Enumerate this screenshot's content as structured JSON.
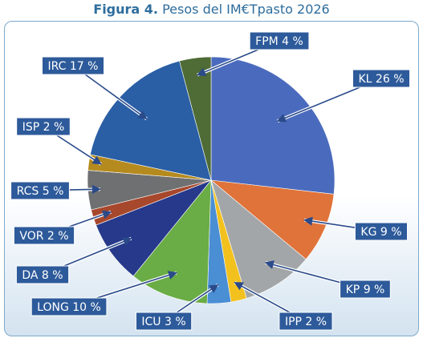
{
  "title": {
    "prefix": "Figura 4.",
    "text": "Pesos del IM€Tpasto 2026"
  },
  "chart_data": {
    "type": "pie",
    "title": "Figura 4. Pesos del IM€Tpasto 2026",
    "slices": [
      {
        "label": "KL 26 %",
        "name": "KL",
        "value": 26,
        "color": "#4a6bbd"
      },
      {
        "label": "KG 9 %",
        "name": "KG",
        "value": 9,
        "color": "#e0733a"
      },
      {
        "label": "KP 9 %",
        "name": "KP",
        "value": 9,
        "color": "#a3a6a8"
      },
      {
        "label": "IPP 2 %",
        "name": "IPP",
        "value": 2,
        "color": "#f2c11e"
      },
      {
        "label": "ICU 3 %",
        "name": "ICU",
        "value": 3,
        "color": "#4a8ed4"
      },
      {
        "label": "LONG 10 %",
        "name": "LONG",
        "value": 10,
        "color": "#6aac45"
      },
      {
        "label": "DA 8 %",
        "name": "DA",
        "value": 8,
        "color": "#26398a"
      },
      {
        "label": "VOR 2 %",
        "name": "VOR",
        "value": 2,
        "color": "#a7472c"
      },
      {
        "label": "RCS 5 %",
        "name": "RCS",
        "value": 5,
        "color": "#6f7072"
      },
      {
        "label": "ISP 2 %",
        "name": "ISP",
        "value": 2,
        "color": "#b58a1e"
      },
      {
        "label": "IRC 17 %",
        "name": "IRC",
        "value": 17,
        "color": "#2a5fa5"
      },
      {
        "label": "FPM 4 %",
        "name": "FPM",
        "value": 4,
        "color": "#4f6b36"
      }
    ],
    "start_angle": "12 o'clock",
    "direction": "clockwise",
    "label_style": "dark blue boxes with white text, arrows pointing to slices"
  }
}
